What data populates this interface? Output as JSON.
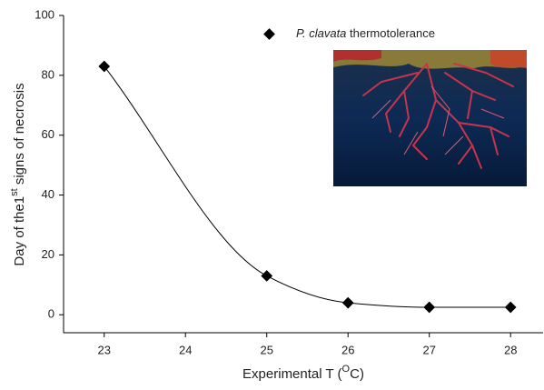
{
  "chart_data": {
    "type": "scatter",
    "x_label": [
      "Experimental T (",
      "O",
      "C)"
    ],
    "y_label": [
      "Day of the1",
      "st",
      " signs of necrosis"
    ],
    "x": [
      23,
      25,
      26,
      27,
      28
    ],
    "series": [
      {
        "name": [
          "P. clavata",
          " thermotolerance"
        ],
        "color": "#000000",
        "values": [
          83,
          13,
          4,
          2.5,
          2.5
        ]
      }
    ],
    "xlim": [
      22.5,
      28.4
    ],
    "xticks": [
      23,
      24,
      25,
      26,
      27,
      28
    ],
    "ylim": [
      -6,
      100
    ],
    "yticks": [
      0,
      20,
      40,
      60,
      80,
      100
    ],
    "fit_line": true,
    "grid": false
  }
}
